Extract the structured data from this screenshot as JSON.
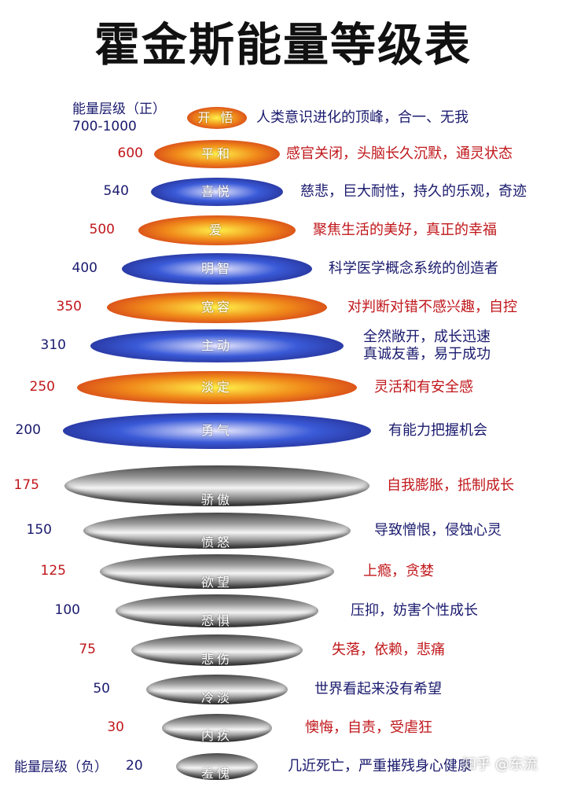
{
  "title": "霍金斯能量等级表",
  "header_label_line1": "能量层级（正）",
  "header_label_line2": "700-1000",
  "negative_label": "能量层级（负）",
  "watermark": "知乎 @东流",
  "colors": {
    "red_text": "#c0171b",
    "navy_text": "#1a1a6e",
    "warm_outer": "#c51a1a",
    "warm_mid": "#f08a1a",
    "warm_inner": "#fff24a",
    "cool_outer": "#1a1a70",
    "cool_mid": "#3a5ad8",
    "cool_inner": "#e8e8ff",
    "gray_dark": "#4a4a4a",
    "gray_light": "#f4f4f4"
  },
  "levels": [
    {
      "level": "",
      "name": "开 悟",
      "desc": "人类意识进化的顶峰，合一、无我",
      "style": "warm",
      "text_color": "navy"
    },
    {
      "level": "600",
      "name": "平和",
      "desc": "感官关闭，头脑长久沉默，通灵状态",
      "style": "warm",
      "text_color": "red"
    },
    {
      "level": "540",
      "name": "喜悦",
      "desc": "慈悲，巨大耐性，持久的乐观，奇迹",
      "style": "cool",
      "text_color": "navy"
    },
    {
      "level": "500",
      "name": "爱",
      "desc": "聚焦生活的美好，真正的幸福",
      "style": "warm",
      "text_color": "red"
    },
    {
      "level": "400",
      "name": "明智",
      "desc": "科学医学概念系统的创造者",
      "style": "cool",
      "text_color": "navy"
    },
    {
      "level": "350",
      "name": "宽容",
      "desc": "对判断对错不感兴趣，自控",
      "style": "warm",
      "text_color": "red"
    },
    {
      "level": "310",
      "name": "主动",
      "desc": "全然敞开，成长迅速\n真诚友善，易于成功",
      "style": "cool",
      "text_color": "navy"
    },
    {
      "level": "250",
      "name": "淡定",
      "desc": "灵活和有安全感",
      "style": "warm",
      "text_color": "red"
    },
    {
      "level": "200",
      "name": "勇气",
      "desc": "有能力把握机会",
      "style": "cool",
      "text_color": "navy"
    },
    {
      "level": "175",
      "name": "骄傲",
      "desc": "自我膨胀，抵制成长",
      "style": "gray",
      "text_color": "red"
    },
    {
      "level": "150",
      "name": "愤怒",
      "desc": "导致憎恨，侵蚀心灵",
      "style": "gray",
      "text_color": "navy"
    },
    {
      "level": "125",
      "name": "欲望",
      "desc": "上瘾，贪婪",
      "style": "gray",
      "text_color": "red"
    },
    {
      "level": "100",
      "name": "恐惧",
      "desc": "压抑，妨害个性成长",
      "style": "gray",
      "text_color": "navy"
    },
    {
      "level": "75",
      "name": "悲伤",
      "desc": "失落，依赖，悲痛",
      "style": "gray",
      "text_color": "red"
    },
    {
      "level": "50",
      "name": "冷淡",
      "desc": "世界看起来没有希望",
      "style": "gray",
      "text_color": "navy"
    },
    {
      "level": "30",
      "name": "内疚",
      "desc": "懊悔，自责，受虐狂",
      "style": "gray",
      "text_color": "red"
    },
    {
      "level": "20",
      "name": "羞愧",
      "desc": "几近死亡，严重摧残身心健康",
      "style": "gray",
      "text_color": "navy"
    }
  ]
}
